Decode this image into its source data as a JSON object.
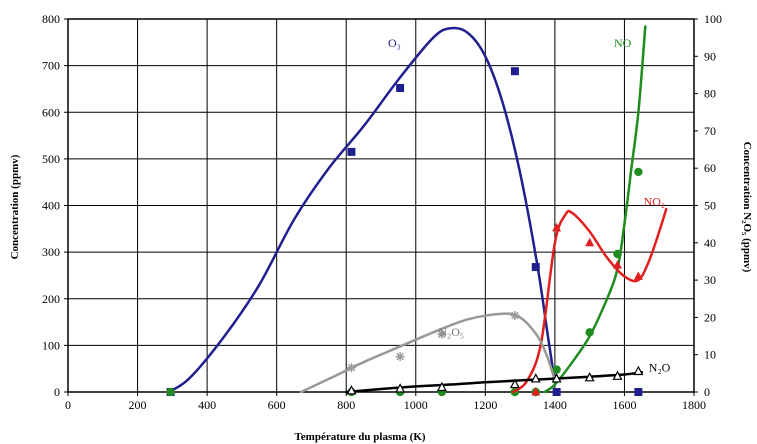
{
  "chart_data": {
    "type": "line",
    "xlabel": "Température du plasma (K)",
    "ylabel": "Concentration (ppmv)",
    "y2label": "Concentration N₂O₅ (ppmv)",
    "xlim": [
      0,
      1800
    ],
    "ylim": [
      0,
      800
    ],
    "y2lim": [
      0,
      100
    ],
    "x_ticks": [
      0,
      200,
      400,
      600,
      800,
      1000,
      1200,
      1400,
      1600,
      1800
    ],
    "y_ticks": [
      0,
      100,
      200,
      300,
      400,
      500,
      600,
      700,
      800
    ],
    "y2_ticks": [
      0,
      10,
      20,
      30,
      40,
      50,
      60,
      70,
      80,
      90,
      100
    ],
    "grid": true,
    "legend": "none",
    "series": [
      {
        "name": "O₃",
        "axis": "left",
        "color": "#1f1f8f",
        "marker": "square",
        "points": [
          [
            295,
            0
          ],
          [
            815,
            515
          ],
          [
            955,
            652
          ],
          [
            1285,
            688
          ],
          [
            1345,
            268
          ],
          [
            1405,
            0
          ],
          [
            1640,
            0
          ]
        ],
        "curve": [
          [
            290,
            0
          ],
          [
            350,
            30
          ],
          [
            450,
            120
          ],
          [
            550,
            230
          ],
          [
            650,
            370
          ],
          [
            750,
            480
          ],
          [
            850,
            570
          ],
          [
            950,
            670
          ],
          [
            1050,
            760
          ],
          [
            1100,
            780
          ],
          [
            1150,
            770
          ],
          [
            1200,
            720
          ],
          [
            1250,
            620
          ],
          [
            1300,
            470
          ],
          [
            1350,
            270
          ],
          [
            1380,
            120
          ],
          [
            1400,
            20
          ]
        ]
      },
      {
        "name": "NO",
        "axis": "right",
        "color": "#1e8c1e",
        "marker": "circle",
        "points": [
          [
            295,
            0
          ],
          [
            815,
            0
          ],
          [
            955,
            0
          ],
          [
            1075,
            0
          ],
          [
            1285,
            0
          ],
          [
            1345,
            0
          ],
          [
            1405,
            6
          ],
          [
            1500,
            16
          ],
          [
            1580,
            37
          ],
          [
            1640,
            59
          ]
        ],
        "curve": [
          [
            1370,
            0
          ],
          [
            1400,
            2
          ],
          [
            1450,
            8
          ],
          [
            1500,
            15
          ],
          [
            1550,
            25
          ],
          [
            1580,
            33
          ],
          [
            1600,
            45
          ],
          [
            1620,
            60
          ],
          [
            1640,
            75
          ],
          [
            1660,
            98
          ]
        ]
      },
      {
        "name": "NO₂",
        "axis": "right",
        "color": "#e0201e",
        "marker": "triangle",
        "points": [
          [
            1345,
            0
          ],
          [
            1405,
            44
          ],
          [
            1500,
            40
          ],
          [
            1580,
            34
          ],
          [
            1640,
            31
          ]
        ],
        "curve": [
          [
            1280,
            0
          ],
          [
            1320,
            3
          ],
          [
            1360,
            13
          ],
          [
            1400,
            40
          ],
          [
            1430,
            47.5
          ],
          [
            1450,
            48
          ],
          [
            1500,
            43
          ],
          [
            1550,
            36
          ],
          [
            1600,
            31
          ],
          [
            1640,
            30
          ],
          [
            1670,
            35
          ],
          [
            1700,
            43
          ],
          [
            1720,
            49
          ]
        ]
      },
      {
        "name": "N₂O₅",
        "axis": "right",
        "color": "#999999",
        "marker": "star",
        "points": [
          [
            815,
            6.5
          ],
          [
            955,
            9.5
          ],
          [
            1075,
            15.5
          ],
          [
            1285,
            20.5
          ]
        ],
        "curve": [
          [
            670,
            0
          ],
          [
            750,
            3.5
          ],
          [
            850,
            8
          ],
          [
            950,
            12
          ],
          [
            1050,
            16
          ],
          [
            1150,
            19.5
          ],
          [
            1250,
            21
          ],
          [
            1300,
            20
          ],
          [
            1350,
            15
          ],
          [
            1380,
            9
          ],
          [
            1400,
            3
          ]
        ]
      },
      {
        "name": "N₂O",
        "axis": "right",
        "color": "#000000",
        "marker": "triangle-open",
        "points": [
          [
            815,
            0.3
          ],
          [
            955,
            0.8
          ],
          [
            1075,
            1.2
          ],
          [
            1285,
            2
          ],
          [
            1345,
            3.5
          ],
          [
            1405,
            3.5
          ],
          [
            1500,
            3.8
          ],
          [
            1580,
            4.2
          ],
          [
            1640,
            5.5
          ]
        ],
        "curve": [
          [
            800,
            0
          ],
          [
            900,
            0.8
          ],
          [
            1000,
            1.5
          ],
          [
            1100,
            2
          ],
          [
            1200,
            2.6
          ],
          [
            1300,
            3.1
          ],
          [
            1400,
            3.6
          ],
          [
            1500,
            4.1
          ],
          [
            1600,
            4.7
          ],
          [
            1650,
            5.3
          ]
        ]
      }
    ],
    "labels": [
      {
        "text": "O₃",
        "x": 920,
        "y": 740,
        "axis": "left",
        "color": "#1f1f8f"
      },
      {
        "text": "NO",
        "x": 1570,
        "y": 92.5,
        "axis": "right",
        "color": "#1e8c1e"
      },
      {
        "text": "NO₂",
        "x": 1655,
        "y": 50,
        "axis": "right",
        "color": "#e0201e"
      },
      {
        "text": "N₂O₅",
        "x": 1065,
        "y": 15,
        "axis": "right",
        "color": "#777777"
      },
      {
        "text": "N₂O",
        "x": 1670,
        "y": 5.5,
        "axis": "right",
        "color": "#000000"
      }
    ]
  }
}
